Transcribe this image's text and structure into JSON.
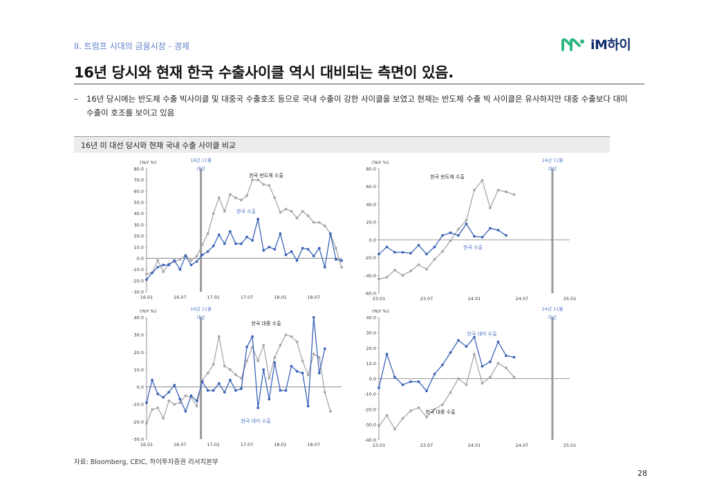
{
  "header": {
    "section": "II. 트럼프 시대의 금융시장 - 경제",
    "logo_text": "iM하이"
  },
  "title": "16년 당시와 현재 한국 수출사이클 역시 대비되는 측면이 있음.",
  "bullet": {
    "dash": "–",
    "text": "16년 당시에는 반도체 수출 빅사이클 및 대중국 수출호조 등으로 국내 수출이 강한 사이클을 보였고 현재는 반도체 수출 빅 사이클은 유사하지만 대중 수출보다 대미 수출이 호조를 보이고 있음"
  },
  "panel_title": "16년 미 대선 당시와 현재 국내 수출 사이클 비교",
  "colors": {
    "blue": "#3a63b8",
    "gray": "#a6a6a6",
    "bar": "#9a9a9a",
    "label_blue": "#4a72c4"
  },
  "chart_data": [
    {
      "type": "line",
      "unit": "(YoY %)",
      "ylim": [
        -30,
        80
      ],
      "yticks": [
        "80.0",
        "70.0",
        "60.0",
        "50.0",
        "40.0",
        "30.0",
        "20.0",
        "10.0",
        "0.0",
        "-10.0",
        "-20.0",
        "-30.0"
      ],
      "xlim": [
        0,
        35
      ],
      "xticks": [
        {
          "label": "16.01",
          "i": 0
        },
        {
          "label": "16.07",
          "i": 6
        },
        {
          "label": "17.01",
          "i": 12
        },
        {
          "label": "17.07",
          "i": 18
        },
        {
          "label": "18.01",
          "i": 24
        },
        {
          "label": "18.07",
          "i": 30
        }
      ],
      "event": {
        "label": "16년 11월 대선",
        "i": 10
      },
      "series": [
        {
          "name": "한국 반도체 수출",
          "color": "gray",
          "values": [
            -14,
            -13,
            -2,
            -12,
            -5,
            -3,
            -1,
            3,
            -2,
            2,
            12,
            22,
            40,
            54,
            42,
            57,
            54,
            52,
            56,
            70,
            70,
            66,
            65,
            54,
            41,
            44,
            42,
            36,
            42,
            38,
            32,
            32,
            29,
            22,
            9,
            -8
          ]
        },
        {
          "name": "한국 수출",
          "color": "blue",
          "values": [
            -19,
            -13,
            -8,
            -6,
            -6,
            -2,
            -10,
            2,
            -6,
            -3,
            3,
            6,
            11,
            21,
            13,
            24,
            13,
            13,
            19,
            16,
            35,
            7,
            10,
            8,
            22,
            3,
            6,
            -2,
            9,
            8,
            2,
            9,
            -8,
            22,
            -1,
            -2
          ]
        }
      ]
    },
    {
      "type": "line",
      "unit": "(YoY %)",
      "ylim": [
        -60,
        80
      ],
      "yticks": [
        "80.0",
        "60.0",
        "40.0",
        "20.0",
        "0.0",
        "-20.0",
        "-40.0",
        "-60.0"
      ],
      "xlim": [
        0,
        24
      ],
      "xticks": [
        {
          "label": "23.01",
          "i": 0
        },
        {
          "label": "23.07",
          "i": 6
        },
        {
          "label": "24.01",
          "i": 12
        },
        {
          "label": "24.07",
          "i": 18
        },
        {
          "label": "25.01",
          "i": 24
        }
      ],
      "event": {
        "label": "24년 11월 대선",
        "i": 22
      },
      "series": [
        {
          "name": "한국 반도체 수출",
          "color": "gray",
          "values": [
            -44,
            -42,
            -34,
            -40,
            -35,
            -28,
            -33,
            -22,
            -13,
            -1,
            12,
            22,
            56,
            67,
            36,
            56,
            54,
            51
          ]
        },
        {
          "name": "한국 수출",
          "color": "blue",
          "values": [
            -16,
            -8,
            -14,
            -14,
            -15,
            -6,
            -16,
            -8,
            5,
            8,
            5,
            18,
            4,
            3,
            13,
            11,
            5
          ]
        }
      ]
    },
    {
      "type": "line",
      "unit": "(YoY %)",
      "ylim": [
        -30,
        40
      ],
      "yticks": [
        "40.0",
        "30.0",
        "20.0",
        "10.0",
        "0.0",
        "-10.0",
        "-20.0",
        "-30.0"
      ],
      "xlim": [
        0,
        35
      ],
      "xticks": [
        {
          "label": "16.01",
          "i": 0
        },
        {
          "label": "16.07",
          "i": 6
        },
        {
          "label": "17.01",
          "i": 12
        },
        {
          "label": "17.07",
          "i": 18
        },
        {
          "label": "18.01",
          "i": 24
        },
        {
          "label": "18.07",
          "i": 30
        }
      ],
      "event": {
        "label": "16년 11월 대선",
        "i": 10
      },
      "series": [
        {
          "name": "한국 대중 수출",
          "color": "gray",
          "values": [
            -21,
            -13,
            -12,
            -18,
            -8,
            -10,
            -9,
            -5,
            -6,
            -11,
            4,
            8,
            13,
            29,
            12,
            10,
            7,
            5,
            15,
            23,
            15,
            24,
            5,
            17,
            24,
            30,
            29,
            26,
            15,
            7,
            19,
            17,
            -3,
            -14
          ]
        },
        {
          "name": "한국 대미 수출",
          "color": "blue",
          "values": [
            -9,
            4,
            -4,
            -6,
            -3,
            1,
            -7,
            -14,
            -5,
            -8,
            3,
            -2,
            -2,
            2,
            -3,
            4,
            -2,
            -1,
            23,
            29,
            -12,
            10,
            -7,
            14,
            -2,
            -2,
            12,
            9,
            8,
            -11,
            40,
            8,
            22
          ]
        }
      ]
    },
    {
      "type": "line",
      "unit": "(YoY %)",
      "ylim": [
        -40,
        40
      ],
      "yticks": [
        "40.0",
        "30.0",
        "20.0",
        "10.0",
        "0.0",
        "-10.0",
        "-20.0",
        "-30.0",
        "-40.0"
      ],
      "xlim": [
        0,
        24
      ],
      "xticks": [
        {
          "label": "23.01",
          "i": 0
        },
        {
          "label": "23.07",
          "i": 6
        },
        {
          "label": "24.01",
          "i": 12
        },
        {
          "label": "24.07",
          "i": 18
        },
        {
          "label": "25.01",
          "i": 24
        }
      ],
      "event": {
        "label": "24년 11월 대선",
        "i": 22
      },
      "series": [
        {
          "name": "한국 대중 수출",
          "color": "gray",
          "values": [
            -31,
            -24,
            -33,
            -26,
            -21,
            -19,
            -25,
            -20,
            -17,
            -9,
            0,
            -4,
            16,
            -3,
            1,
            10,
            7,
            1
          ]
        },
        {
          "name": "한국 대미 수출",
          "color": "blue",
          "values": [
            -6,
            16,
            1,
            -4,
            -2,
            -2,
            -8,
            3,
            9,
            17,
            25,
            21,
            27,
            8,
            11,
            24,
            15,
            14
          ]
        }
      ]
    }
  ],
  "source": "자료: Bloomberg, CEIC, 하이투자증권 리서치본부",
  "page_number": "28"
}
